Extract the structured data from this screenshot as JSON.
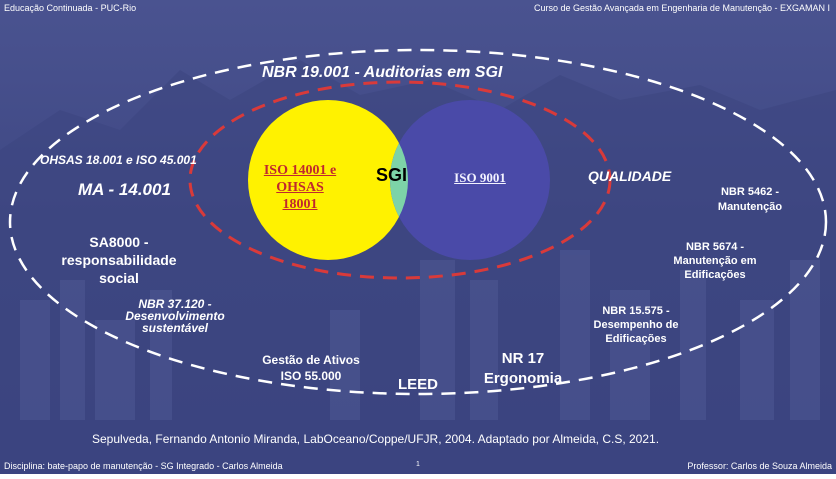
{
  "header": {
    "left": "Educação Continuada - PUC-Rio",
    "right": "Curso de Gestão Avançada em Engenharia de Manutenção - EXGAMAN I"
  },
  "diagram": {
    "outer_title": "NBR  19.001 - Auditorias em SGI",
    "left": {
      "ohsas": "OHSAS 18.001 e ISO 45.001",
      "ma": "MA - 14.001",
      "sa8000": [
        "SA8000 -",
        "responsabilidade",
        "social"
      ],
      "nbr37120": [
        "NBR 37.120 -",
        "Desenvolvimento",
        "sustentável"
      ]
    },
    "venn": {
      "left_circle": [
        "ISO 14001 e",
        "OHSAS",
        "18001"
      ],
      "center": "SGI",
      "right_circle": "ISO  9001"
    },
    "right": {
      "qualidade": "QUALIDADE",
      "nbr5462": [
        "NBR 5462 -",
        "Manutenção"
      ],
      "nbr5674": [
        "NBR 5674 -",
        "Manutenção em",
        "Edificações"
      ],
      "nbr15575": [
        "NBR 15.575 -",
        "Desempenho de",
        "Edificações"
      ]
    },
    "bottom": {
      "ativos": [
        "Gestão de Ativos",
        "ISO 55.000"
      ],
      "leed": "LEED",
      "nr17": [
        "NR 17",
        "Ergonomia"
      ]
    },
    "colors": {
      "yellow": "#fff200",
      "green": "#7dd3a8",
      "blue": "#4a4aa8",
      "red_dash": "#d93a3a",
      "white_dash": "#ffffff",
      "label_red": "#c0282e"
    }
  },
  "citation": "Sepulveda, Fernando Antonio Miranda, LabOceano/Coppe/UFJR, 2004. Adaptado por Almeida, C.S, 2021.",
  "footer": {
    "left": "Disciplina: bate-papo de manutenção - SG Integrado - Carlos Almeida",
    "page": "1",
    "right": "Professor: Carlos de Souza Almeida"
  }
}
